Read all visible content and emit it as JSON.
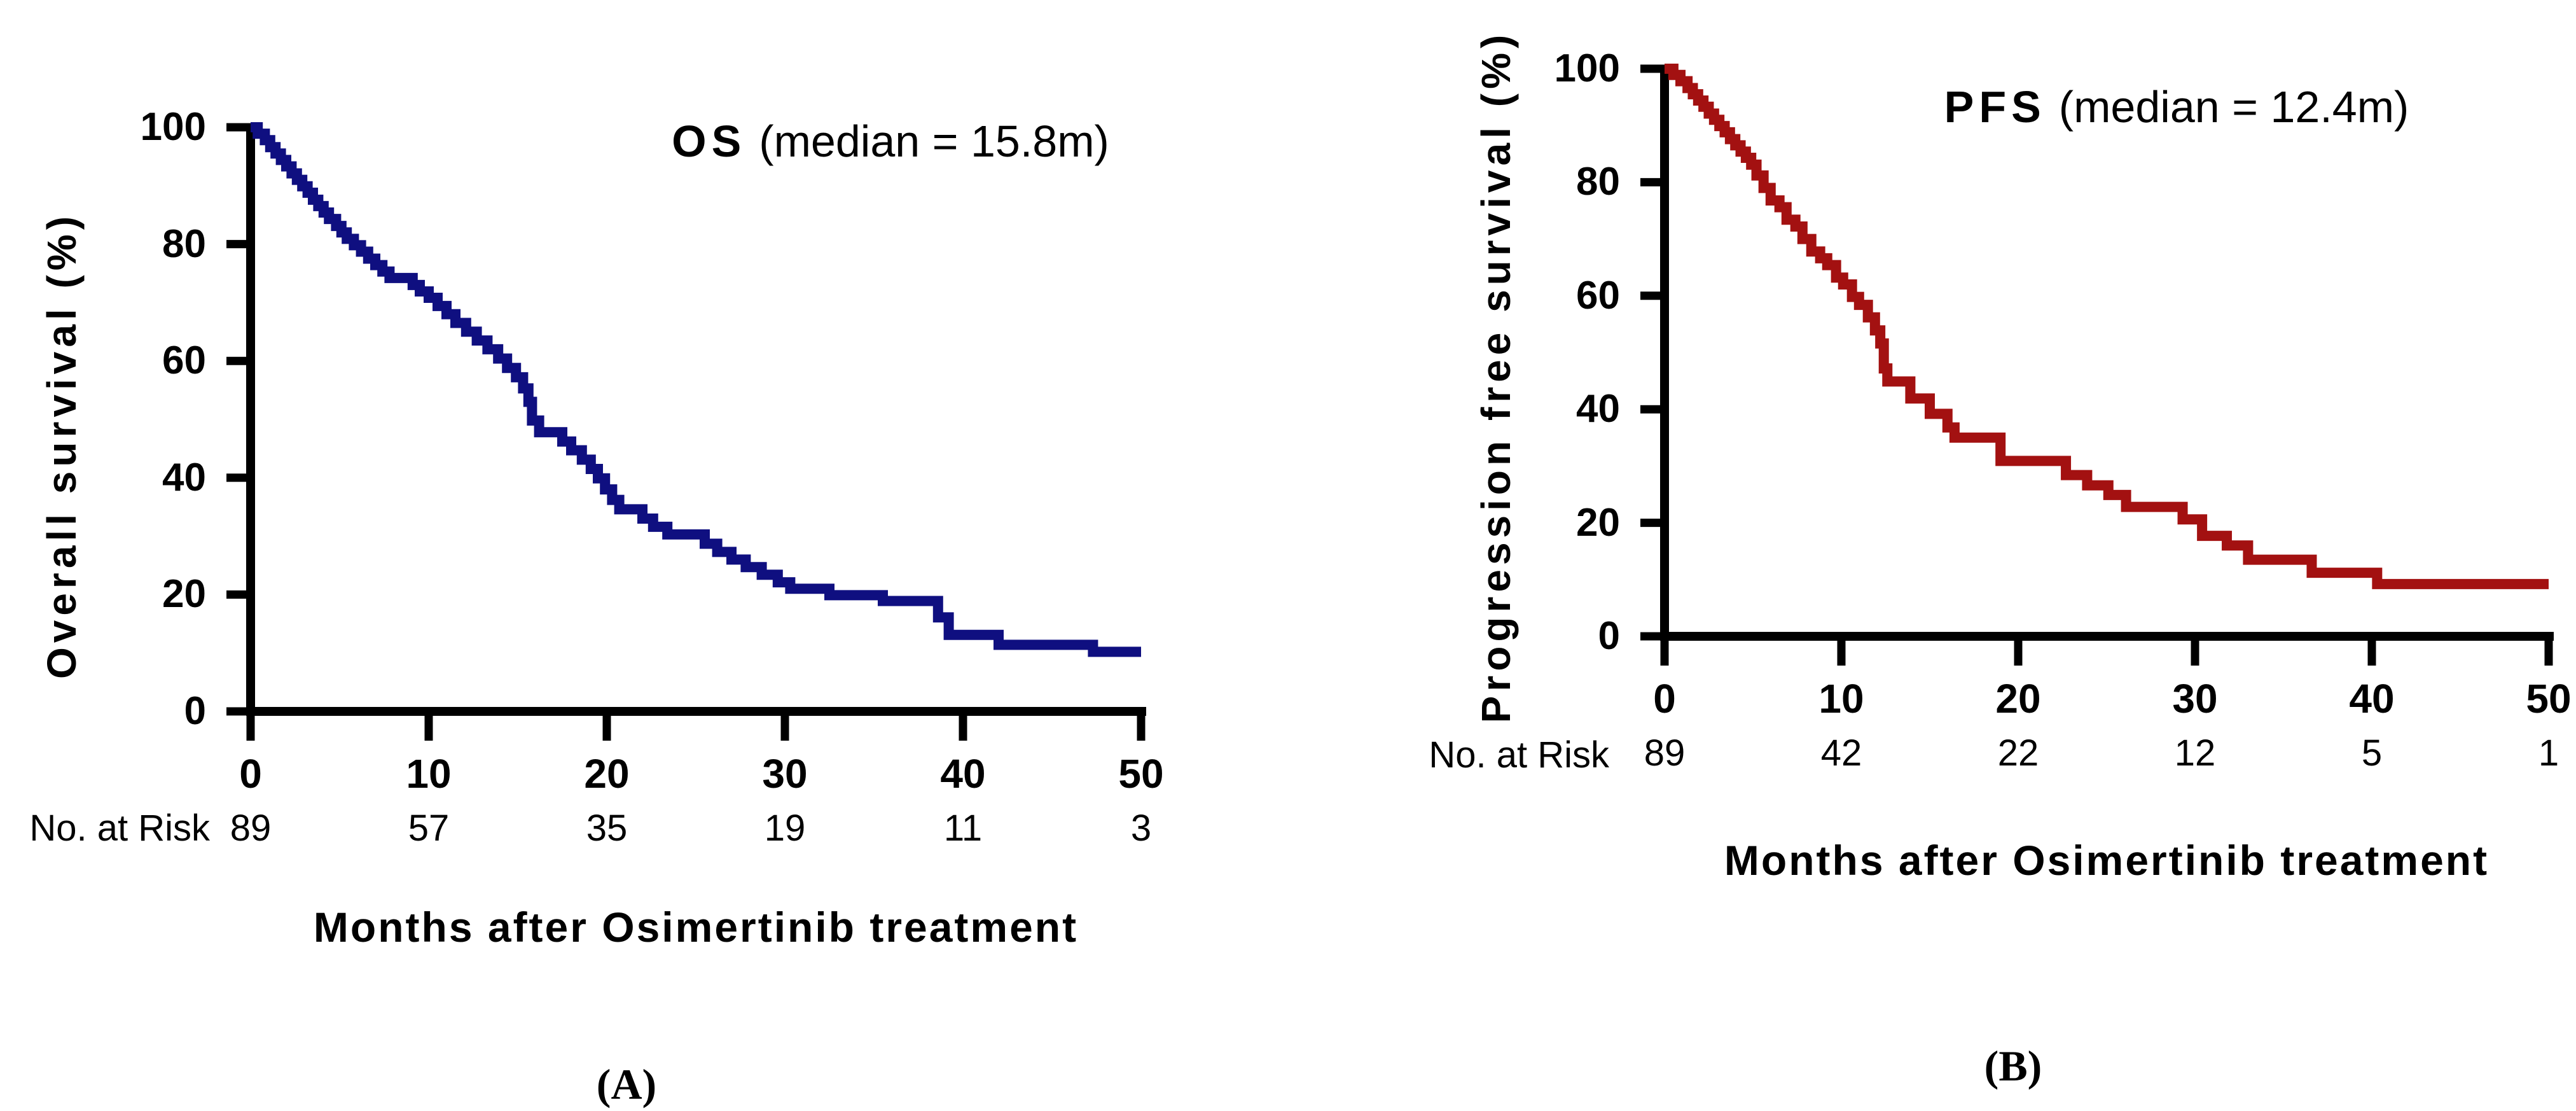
{
  "figure": {
    "background_color": "#FFFFFF",
    "axis_color": "#000000"
  },
  "chart_data": [
    {
      "id": "A",
      "type": "line",
      "subtype": "kaplan-meier-step",
      "panel_label": "(A)",
      "title_bold": "OS",
      "title_rest": "(median = 15.8m)",
      "median_months": 15.8,
      "ylabel": "Overall survival (%)",
      "xlabel": "Months after Osimertinib treatment",
      "xlim": [
        0,
        50
      ],
      "ylim": [
        0,
        100
      ],
      "x_ticks": [
        0,
        10,
        20,
        30,
        40,
        50
      ],
      "y_ticks": [
        0,
        20,
        40,
        60,
        80,
        100
      ],
      "grid": false,
      "legend": "none",
      "line_color": "#0F0F80",
      "number_at_risk": {
        "label": "No. at Risk",
        "times": [
          0,
          10,
          20,
          30,
          40,
          50
        ],
        "counts": [
          89,
          57,
          35,
          19,
          11,
          3
        ]
      },
      "series": [
        {
          "name": "Overall survival",
          "steps": [
            [
              0,
              100
            ],
            [
              0.4,
              98.9
            ],
            [
              0.8,
              97.8
            ],
            [
              1.1,
              96.6
            ],
            [
              1.4,
              95.5
            ],
            [
              1.7,
              94.4
            ],
            [
              2.0,
              93.3
            ],
            [
              2.3,
              92.1
            ],
            [
              2.6,
              91.0
            ],
            [
              2.9,
              89.9
            ],
            [
              3.2,
              88.8
            ],
            [
              3.5,
              87.6
            ],
            [
              3.8,
              86.5
            ],
            [
              4.1,
              85.4
            ],
            [
              4.4,
              84.3
            ],
            [
              4.8,
              83.1
            ],
            [
              5.1,
              82.0
            ],
            [
              5.4,
              80.9
            ],
            [
              5.8,
              79.8
            ],
            [
              6.2,
              78.7
            ],
            [
              6.6,
              77.5
            ],
            [
              7.0,
              76.4
            ],
            [
              7.4,
              75.3
            ],
            [
              7.8,
              74.2
            ],
            [
              9.1,
              73.0
            ],
            [
              9.5,
              71.9
            ],
            [
              10.0,
              70.8
            ],
            [
              10.5,
              69.4
            ],
            [
              11.0,
              68.0
            ],
            [
              11.5,
              66.5
            ],
            [
              12.1,
              65.0
            ],
            [
              12.7,
              63.5
            ],
            [
              13.3,
              62.0
            ],
            [
              13.9,
              60.4
            ],
            [
              14.4,
              58.8
            ],
            [
              14.9,
              57.2
            ],
            [
              15.3,
              55.3
            ],
            [
              15.6,
              53.0
            ],
            [
              15.8,
              49.8
            ],
            [
              16.2,
              47.8
            ],
            [
              17.5,
              46.2
            ],
            [
              18.0,
              44.7
            ],
            [
              18.6,
              43.1
            ],
            [
              19.1,
              41.5
            ],
            [
              19.5,
              39.9
            ],
            [
              19.9,
              38.0
            ],
            [
              20.3,
              36.2
            ],
            [
              20.7,
              34.6
            ],
            [
              22.0,
              33.0
            ],
            [
              22.6,
              31.6
            ],
            [
              23.4,
              30.3
            ],
            [
              25.5,
              28.7
            ],
            [
              26.2,
              27.3
            ],
            [
              27.0,
              26.0
            ],
            [
              27.8,
              24.7
            ],
            [
              28.7,
              23.4
            ],
            [
              29.6,
              22.1
            ],
            [
              30.3,
              21.0
            ],
            [
              32.5,
              19.9
            ],
            [
              35.5,
              18.9
            ],
            [
              38.6,
              16.1
            ],
            [
              39.2,
              13.1
            ],
            [
              42.0,
              11.4
            ],
            [
              47.3,
              10.2
            ],
            [
              50,
              10.2
            ]
          ]
        }
      ]
    },
    {
      "id": "B",
      "type": "line",
      "subtype": "kaplan-meier-step",
      "panel_label": "(B)",
      "title_bold": "PFS",
      "title_rest": "(median = 12.4m)",
      "median_months": 12.4,
      "ylabel": "Progression free survival (%)",
      "xlabel": "Months after Osimertinib treatment",
      "xlim": [
        0,
        50
      ],
      "ylim": [
        0,
        100
      ],
      "x_ticks": [
        0,
        10,
        20,
        30,
        40,
        50
      ],
      "y_ticks": [
        0,
        20,
        40,
        60,
        80,
        100
      ],
      "grid": false,
      "legend": "none",
      "line_color": "#A31111",
      "number_at_risk": {
        "label": "No. at Risk",
        "times": [
          0,
          10,
          20,
          30,
          40,
          50
        ],
        "counts": [
          89,
          42,
          22,
          12,
          5,
          1
        ]
      },
      "series": [
        {
          "name": "Progression free survival",
          "steps": [
            [
              0,
              100
            ],
            [
              0.5,
              98.9
            ],
            [
              0.9,
              97.8
            ],
            [
              1.3,
              96.6
            ],
            [
              1.6,
              95.5
            ],
            [
              1.9,
              94.4
            ],
            [
              2.2,
              93.3
            ],
            [
              2.5,
              92.1
            ],
            [
              2.8,
              91.0
            ],
            [
              3.1,
              89.9
            ],
            [
              3.4,
              88.8
            ],
            [
              3.7,
              87.6
            ],
            [
              4.0,
              86.5
            ],
            [
              4.3,
              85.4
            ],
            [
              4.6,
              84.3
            ],
            [
              4.9,
              83.1
            ],
            [
              5.2,
              81.2
            ],
            [
              5.6,
              79.0
            ],
            [
              6.0,
              76.8
            ],
            [
              6.5,
              75.6
            ],
            [
              6.9,
              73.4
            ],
            [
              7.4,
              72.2
            ],
            [
              7.8,
              70.0
            ],
            [
              8.3,
              67.8
            ],
            [
              8.8,
              66.6
            ],
            [
              9.2,
              65.4
            ],
            [
              9.7,
              63.2
            ],
            [
              10.1,
              62.0
            ],
            [
              10.6,
              59.8
            ],
            [
              11.0,
              58.4
            ],
            [
              11.5,
              56.2
            ],
            [
              11.9,
              53.9
            ],
            [
              12.2,
              51.6
            ],
            [
              12.4,
              47.2
            ],
            [
              12.6,
              44.9
            ],
            [
              13.9,
              41.9
            ],
            [
              15.0,
              39.2
            ],
            [
              16.0,
              36.8
            ],
            [
              16.4,
              35.0
            ],
            [
              19.0,
              30.9
            ],
            [
              22.7,
              28.4
            ],
            [
              23.9,
              26.6
            ],
            [
              25.1,
              24.9
            ],
            [
              26.1,
              22.8
            ],
            [
              29.3,
              20.6
            ],
            [
              30.4,
              17.7
            ],
            [
              31.8,
              16.0
            ],
            [
              33.0,
              13.5
            ],
            [
              36.6,
              11.2
            ],
            [
              40.3,
              9.2
            ],
            [
              50,
              9.2
            ]
          ]
        }
      ]
    }
  ]
}
